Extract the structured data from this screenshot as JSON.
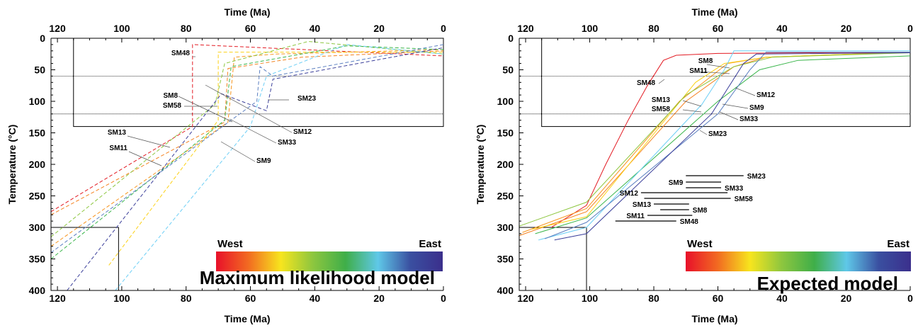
{
  "colors": {
    "gradient": [
      "#e8102a",
      "#f26b21",
      "#f7e51e",
      "#8cc63f",
      "#3fae49",
      "#5fc8e8",
      "#3a4fa0",
      "#3b2f8c"
    ],
    "SM48": "#e31b23",
    "SM13": "#f58220",
    "SM11": "#f7941d",
    "SM8": "#fcd116",
    "SM58": "#8dc63f",
    "SM12": "#39b54a",
    "SM33": "#6dcff6",
    "SM23": "#5b7fc0",
    "SM9": "#3b3f9a"
  },
  "legend": {
    "west": "West",
    "east": "East"
  },
  "chart_data": [
    {
      "type": "line",
      "title": "Maximum likelihood model",
      "xlabel": "Time (Ma)",
      "ylabel": "Temperature (°C)",
      "xlim": [
        122,
        0
      ],
      "ylim": [
        0,
        400
      ],
      "xticks": [
        120,
        100,
        80,
        60,
        40,
        20,
        0
      ],
      "yticks": [
        0,
        50,
        100,
        150,
        200,
        250,
        300,
        350,
        400
      ],
      "line_style": "dashed",
      "constraint_box": {
        "time": [
          115,
          0
        ],
        "temp": [
          0,
          140
        ]
      },
      "reference_lines_temp": [
        60,
        120
      ],
      "start_box": {
        "time": [
          122,
          101
        ],
        "temp": [
          300,
          400
        ]
      },
      "series": [
        {
          "name": "SM48",
          "x": [
            122,
            78,
            78,
            0
          ],
          "y": [
            275,
            140,
            10,
            28
          ]
        },
        {
          "name": "SM13",
          "x": [
            122,
            68,
            67,
            44,
            0
          ],
          "y": [
            280,
            133,
            48,
            30,
            20
          ]
        },
        {
          "name": "SM11",
          "x": [
            122,
            67,
            65,
            52,
            0
          ],
          "y": [
            330,
            133,
            30,
            25,
            18
          ]
        },
        {
          "name": "SM8",
          "x": [
            104,
            70,
            70,
            0
          ],
          "y": [
            360,
            130,
            22,
            22
          ]
        },
        {
          "name": "SM58",
          "x": [
            122,
            71,
            68,
            42,
            0
          ],
          "y": [
            315,
            105,
            40,
            5,
            25
          ]
        },
        {
          "name": "SM12",
          "x": [
            122,
            68,
            66,
            30,
            0
          ],
          "y": [
            350,
            130,
            45,
            12,
            18
          ]
        },
        {
          "name": "SM33",
          "x": [
            102,
            60,
            55,
            30,
            0
          ],
          "y": [
            400,
            140,
            60,
            10,
            25
          ]
        },
        {
          "name": "SM23",
          "x": [
            122,
            58,
            57,
            53,
            0
          ],
          "y": [
            340,
            100,
            45,
            60,
            10
          ]
        },
        {
          "name": "SM9",
          "x": [
            117,
            69,
            55,
            53,
            0
          ],
          "y": [
            400,
            88,
            115,
            65,
            15
          ]
        }
      ],
      "labels": [
        "SM48",
        "SM8",
        "SM58",
        "SM13",
        "SM11",
        "SM23",
        "SM12",
        "SM33",
        "SM9"
      ]
    },
    {
      "type": "line",
      "title": "Expected model",
      "xlabel": "Time (Ma)",
      "ylabel": "Temperature (°C)",
      "xlim": [
        122,
        0
      ],
      "ylim": [
        0,
        400
      ],
      "xticks": [
        120,
        100,
        80,
        60,
        40,
        20,
        0
      ],
      "yticks": [
        0,
        50,
        100,
        150,
        200,
        250,
        300,
        350,
        400
      ],
      "line_style": "solid",
      "constraint_box": {
        "time": [
          115,
          0
        ],
        "temp": [
          0,
          140
        ]
      },
      "reference_lines_temp": [
        60,
        120
      ],
      "start_box": {
        "time": [
          122,
          101
        ],
        "temp": [
          300,
          400
        ]
      },
      "series": [
        {
          "name": "SM48",
          "x": [
            112,
            101,
            95,
            88,
            82,
            77,
            73,
            60,
            0
          ],
          "y": [
            300,
            265,
            200,
            130,
            75,
            35,
            27,
            24,
            22
          ]
        },
        {
          "name": "SM13",
          "x": [
            122,
            101,
            70,
            55,
            45,
            0
          ],
          "y": [
            313,
            275,
            100,
            45,
            30,
            22
          ]
        },
        {
          "name": "SM11",
          "x": [
            121,
            101,
            72,
            57,
            45,
            0
          ],
          "y": [
            308,
            270,
            100,
            40,
            30,
            22
          ]
        },
        {
          "name": "SM8",
          "x": [
            118,
            101,
            67,
            58,
            45,
            0
          ],
          "y": [
            303,
            283,
            70,
            40,
            30,
            22
          ]
        },
        {
          "name": "SM58",
          "x": [
            122,
            101,
            70,
            55,
            43,
            0
          ],
          "y": [
            298,
            260,
            90,
            45,
            30,
            23
          ]
        },
        {
          "name": "SM12",
          "x": [
            117,
            101,
            60,
            47,
            35,
            0
          ],
          "y": [
            310,
            285,
            100,
            50,
            35,
            28
          ]
        },
        {
          "name": "SM33",
          "x": [
            116,
            101,
            65,
            58,
            55,
            0
          ],
          "y": [
            320,
            300,
            105,
            50,
            20,
            20
          ]
        },
        {
          "name": "SM23",
          "x": [
            114,
            101,
            60,
            50,
            45,
            0
          ],
          "y": [
            318,
            292,
            120,
            50,
            22,
            22
          ]
        },
        {
          "name": "SM9",
          "x": [
            111,
            101,
            62,
            52,
            48,
            0
          ],
          "y": [
            320,
            310,
            120,
            40,
            25,
            23
          ]
        }
      ],
      "age_ranges": [
        {
          "name": "SM23",
          "time": [
            70,
            52
          ]
        },
        {
          "name": "SM9",
          "time": [
            70,
            59
          ]
        },
        {
          "name": "SM33",
          "time": [
            70,
            59
          ]
        },
        {
          "name": "SM12",
          "time": [
            84,
            57
          ]
        },
        {
          "name": "SM58",
          "time": [
            83,
            56
          ]
        },
        {
          "name": "SM13",
          "time": [
            80,
            69
          ]
        },
        {
          "name": "SM8",
          "time": [
            78,
            69
          ]
        },
        {
          "name": "SM11",
          "time": [
            82,
            68
          ]
        },
        {
          "name": "SM48",
          "time": [
            92,
            73
          ]
        }
      ],
      "labels": [
        "SM8",
        "SM11",
        "SM48",
        "SM12",
        "SM13",
        "SM58",
        "SM9",
        "SM33",
        "SM23"
      ]
    }
  ]
}
